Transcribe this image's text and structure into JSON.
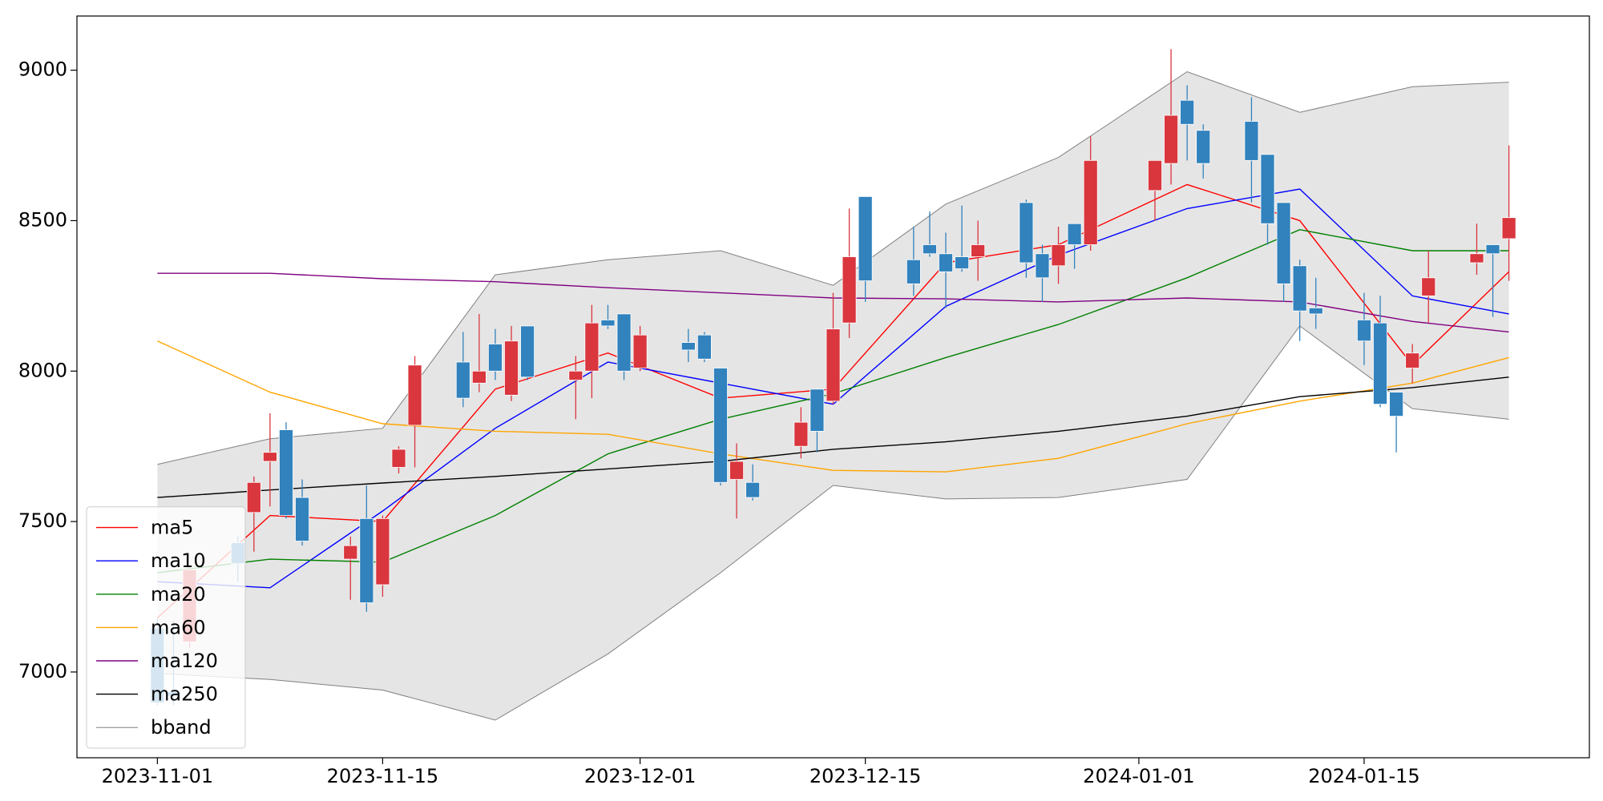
{
  "chart_data": {
    "type": "candlestick",
    "x": [
      "2023-11-01",
      "2023-11-02",
      "2023-11-03",
      "2023-11-06",
      "2023-11-07",
      "2023-11-08",
      "2023-11-09",
      "2023-11-10",
      "2023-11-13",
      "2023-11-14",
      "2023-11-15",
      "2023-11-16",
      "2023-11-17",
      "2023-11-20",
      "2023-11-21",
      "2023-11-22",
      "2023-11-23",
      "2023-11-24",
      "2023-11-27",
      "2023-11-28",
      "2023-11-29",
      "2023-11-30",
      "2023-12-01",
      "2023-12-04",
      "2023-12-05",
      "2023-12-06",
      "2023-12-07",
      "2023-12-08",
      "2023-12-11",
      "2023-12-12",
      "2023-12-13",
      "2023-12-14",
      "2023-12-15",
      "2023-12-18",
      "2023-12-19",
      "2023-12-20",
      "2023-12-21",
      "2023-12-22",
      "2023-12-25",
      "2023-12-26",
      "2023-12-27",
      "2023-12-28",
      "2023-12-29",
      "2024-01-02",
      "2024-01-03",
      "2024-01-04",
      "2024-01-05",
      "2024-01-08",
      "2024-01-09",
      "2024-01-10",
      "2024-01-11",
      "2024-01-12",
      "2024-01-15",
      "2024-01-16",
      "2024-01-17",
      "2024-01-18",
      "2024-01-19",
      "2024-01-22",
      "2024-01-23",
      "2024-01-24"
    ],
    "open": [
      7146,
      6935,
      7100,
      7430,
      7530,
      7700,
      7805,
      7580,
      7375,
      7510,
      7290,
      7680,
      7820,
      8030,
      7960,
      8090,
      7920,
      8150,
      7970,
      8000,
      8170,
      8190,
      8010,
      8095,
      8120,
      8010,
      7640,
      7630,
      7750,
      7940,
      7900,
      8160,
      8580,
      8370,
      8420,
      8390,
      8380,
      8380,
      8560,
      8390,
      8350,
      8490,
      8420,
      8600,
      8690,
      8900,
      8800,
      8830,
      8720,
      8560,
      8350,
      8210,
      8170,
      8160,
      7930,
      8010,
      8250,
      8360,
      8420,
      8440
    ],
    "high": [
      7180,
      7170,
      7350,
      7450,
      7650,
      7860,
      7830,
      7640,
      7450,
      7620,
      7520,
      7750,
      8050,
      8130,
      8190,
      8140,
      8150,
      8150,
      8050,
      8220,
      8220,
      8190,
      8150,
      8140,
      8130,
      8010,
      7760,
      7690,
      7880,
      7940,
      8260,
      8540,
      8580,
      8480,
      8530,
      8460,
      8550,
      8500,
      8570,
      8420,
      8480,
      8490,
      8780,
      8700,
      9070,
      8950,
      8820,
      8910,
      8720,
      8560,
      8370,
      8310,
      8260,
      8250,
      7930,
      8090,
      8400,
      8490,
      8420,
      8750
    ],
    "low": [
      6890,
      6890,
      7080,
      7300,
      7400,
      7550,
      7510,
      7420,
      7240,
      7200,
      7250,
      7660,
      7680,
      7880,
      7930,
      7970,
      7900,
      7970,
      7840,
      7910,
      8140,
      7970,
      8000,
      8030,
      8030,
      7620,
      7510,
      7570,
      7710,
      7730,
      7890,
      8110,
      8230,
      8250,
      8380,
      8210,
      8330,
      8300,
      8310,
      8230,
      8290,
      8340,
      8400,
      8500,
      8620,
      8700,
      8640,
      8560,
      8420,
      8230,
      8100,
      8140,
      8020,
      7880,
      7730,
      7960,
      8160,
      8320,
      8180,
      8300
    ],
    "close": [
      6898,
      6920,
      7340,
      7360,
      7630,
      7730,
      7520,
      7435,
      7420,
      7230,
      7510,
      7740,
      8020,
      7910,
      8000,
      8000,
      8100,
      7980,
      8000,
      8160,
      8150,
      8000,
      8120,
      8070,
      8040,
      7630,
      7700,
      7580,
      7830,
      7800,
      8140,
      8380,
      8300,
      8290,
      8390,
      8330,
      8340,
      8420,
      8360,
      8310,
      8420,
      8420,
      8700,
      8700,
      8850,
      8820,
      8690,
      8700,
      8490,
      8290,
      8200,
      8190,
      8100,
      7890,
      7850,
      8060,
      8310,
      8390,
      8390,
      8510
    ],
    "up_color": "#d9363e",
    "down_color": "#3182bd",
    "series": [
      {
        "name": "ma5",
        "color": "#ff0000",
        "x": [
          "2023-11-01",
          "2023-11-08",
          "2023-11-15",
          "2023-11-22",
          "2023-11-29",
          "2023-12-06",
          "2023-12-13",
          "2023-12-20",
          "2023-12-27",
          "2024-01-04",
          "2024-01-11",
          "2024-01-18",
          "2024-01-24"
        ],
        "values": [
          7180,
          7520,
          7500,
          7940,
          8060,
          7910,
          7940,
          8360,
          8420,
          8620,
          8500,
          8020,
          8330
        ]
      },
      {
        "name": "ma10",
        "color": "#0000ff",
        "x": [
          "2023-11-01",
          "2023-11-08",
          "2023-11-15",
          "2023-11-22",
          "2023-11-29",
          "2023-12-06",
          "2023-12-13",
          "2023-12-20",
          "2023-12-27",
          "2024-01-04",
          "2024-01-11",
          "2024-01-18",
          "2024-01-24"
        ],
        "values": [
          7300,
          7280,
          7535,
          7810,
          8030,
          7960,
          7890,
          8215,
          8385,
          8540,
          8605,
          8250,
          8190
        ]
      },
      {
        "name": "ma20",
        "color": "#008000",
        "x": [
          "2023-11-01",
          "2023-11-08",
          "2023-11-15",
          "2023-11-22",
          "2023-11-29",
          "2023-12-06",
          "2023-12-13",
          "2023-12-20",
          "2023-12-27",
          "2024-01-04",
          "2024-01-11",
          "2024-01-18",
          "2024-01-24"
        ],
        "values": [
          7330,
          7375,
          7365,
          7520,
          7725,
          7840,
          7925,
          8045,
          8155,
          8310,
          8470,
          8400,
          8400
        ]
      },
      {
        "name": "ma60",
        "color": "#ffa500",
        "x": [
          "2023-11-01",
          "2023-11-08",
          "2023-11-15",
          "2023-11-22",
          "2023-11-29",
          "2023-12-06",
          "2023-12-13",
          "2023-12-20",
          "2023-12-27",
          "2024-01-04",
          "2024-01-11",
          "2024-01-18",
          "2024-01-24"
        ],
        "values": [
          8100,
          7930,
          7825,
          7800,
          7790,
          7725,
          7670,
          7665,
          7710,
          7825,
          7900,
          7960,
          8045
        ]
      },
      {
        "name": "ma120",
        "color": "#800080",
        "x": [
          "2023-11-01",
          "2023-11-08",
          "2023-11-15",
          "2023-11-22",
          "2023-11-29",
          "2023-12-06",
          "2023-12-13",
          "2023-12-20",
          "2023-12-27",
          "2024-01-04",
          "2024-01-11",
          "2024-01-18",
          "2024-01-24"
        ],
        "values": [
          8325,
          8325,
          8307,
          8297,
          8277,
          8260,
          8243,
          8240,
          8230,
          8243,
          8230,
          8165,
          8130
        ]
      },
      {
        "name": "ma250",
        "color": "#000000",
        "x": [
          "2023-11-01",
          "2023-11-08",
          "2023-11-15",
          "2023-11-22",
          "2023-11-29",
          "2023-12-06",
          "2023-12-13",
          "2023-12-20",
          "2023-12-27",
          "2024-01-04",
          "2024-01-11",
          "2024-01-18",
          "2024-01-24"
        ],
        "values": [
          7580,
          7605,
          7628,
          7650,
          7675,
          7700,
          7740,
          7765,
          7800,
          7850,
          7915,
          7945,
          7980
        ]
      },
      {
        "name": "bband",
        "color": "#808080",
        "fill": "#e5e5e5",
        "x": [
          "2023-11-01",
          "2023-11-08",
          "2023-11-15",
          "2023-11-22",
          "2023-11-29",
          "2023-12-06",
          "2023-12-13",
          "2023-12-20",
          "2023-12-27",
          "2024-01-04",
          "2024-01-11",
          "2024-01-18",
          "2024-01-24"
        ],
        "upper": [
          7690,
          7775,
          7810,
          8320,
          8370,
          8400,
          8285,
          8555,
          8710,
          8995,
          8860,
          8945,
          8960
        ],
        "lower": [
          6995,
          6975,
          6940,
          6840,
          7060,
          7330,
          7620,
          7575,
          7580,
          7640,
          8150,
          7875,
          7840
        ]
      }
    ],
    "xlim": [
      "2023-10-27",
      "2024-01-29"
    ],
    "xticks": [
      "2023-11-01",
      "2023-11-15",
      "2023-12-01",
      "2023-12-15",
      "2024-01-01",
      "2024-01-15"
    ],
    "ylim": [
      6715,
      9180
    ],
    "yticks": [
      7000,
      7500,
      8000,
      8500,
      9000
    ],
    "legend": "lower left"
  }
}
